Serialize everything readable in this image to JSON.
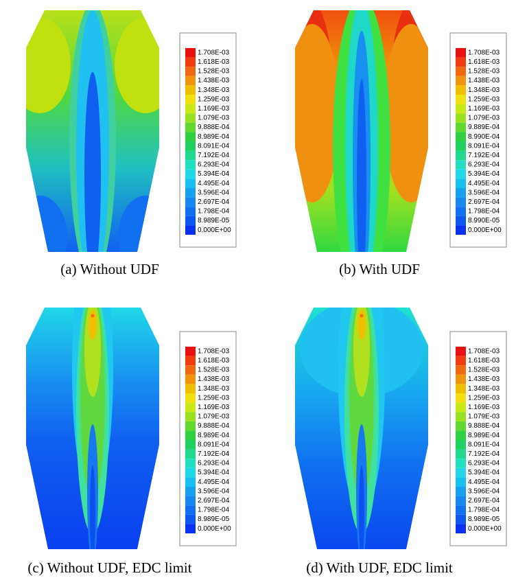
{
  "panels": [
    {
      "caption": "(a) Without UDF",
      "legend": [
        "1.708E-03",
        "1.618E-03",
        "1.528E-03",
        "1.438E-03",
        "1.348E-03",
        "1.259E-03",
        "1.169E-03",
        "1.079E-03",
        "9.888E-04",
        "8.989E-04",
        "8.091E-04",
        "7.192E-04",
        "6.293E-04",
        "5.394E-04",
        "4.495E-04",
        "3.596E-04",
        "2.697E-04",
        "1.798E-04",
        "8.989E-05",
        "0.000E+00"
      ]
    },
    {
      "caption": "(b) With UDF",
      "legend": [
        "1.708E-03",
        "1.618E-03",
        "1.528E-03",
        "1.438E-03",
        "1.348E-03",
        "1.259E-03",
        "1.169E-03",
        "1.079E-03",
        "9.889E-04",
        "8.990E-04",
        "8.091E-04",
        "7.192E-04",
        "6.293E-04",
        "5.394E-04",
        "4.495E-04",
        "3.596E-04",
        "2.697E-04",
        "1.798E-04",
        "8.990E-05",
        "0.000E+00"
      ]
    },
    {
      "caption": "(c) Without UDF, EDC limit",
      "legend": [
        "1.708E-03",
        "1.618E-03",
        "1.528E-03",
        "1.438E-03",
        "1.348E-03",
        "1.259E-03",
        "1.169E-03",
        "1.079E-03",
        "9.888E-04",
        "8.989E-04",
        "8.091E-04",
        "7.192E-04",
        "6.293E-04",
        "5.394E-04",
        "4.495E-04",
        "3.596E-04",
        "2.697E-04",
        "1.798E-04",
        "8.989E-05",
        "0.000E+00"
      ]
    },
    {
      "caption": "(d) With UDF, EDC limit",
      "legend": [
        "1.708E-03",
        "1.618E-03",
        "1.528E-03",
        "1.438E-03",
        "1.348E-03",
        "1.259E-03",
        "1.169E-03",
        "1.079E-03",
        "9.888E-04",
        "8.989E-04",
        "8.091E-04",
        "7.192E-04",
        "6.293E-04",
        "5.394E-04",
        "4.495E-04",
        "3.596E-04",
        "2.697E-04",
        "1.798E-04",
        "8.989E-05",
        "0.000E+00"
      ]
    }
  ]
}
